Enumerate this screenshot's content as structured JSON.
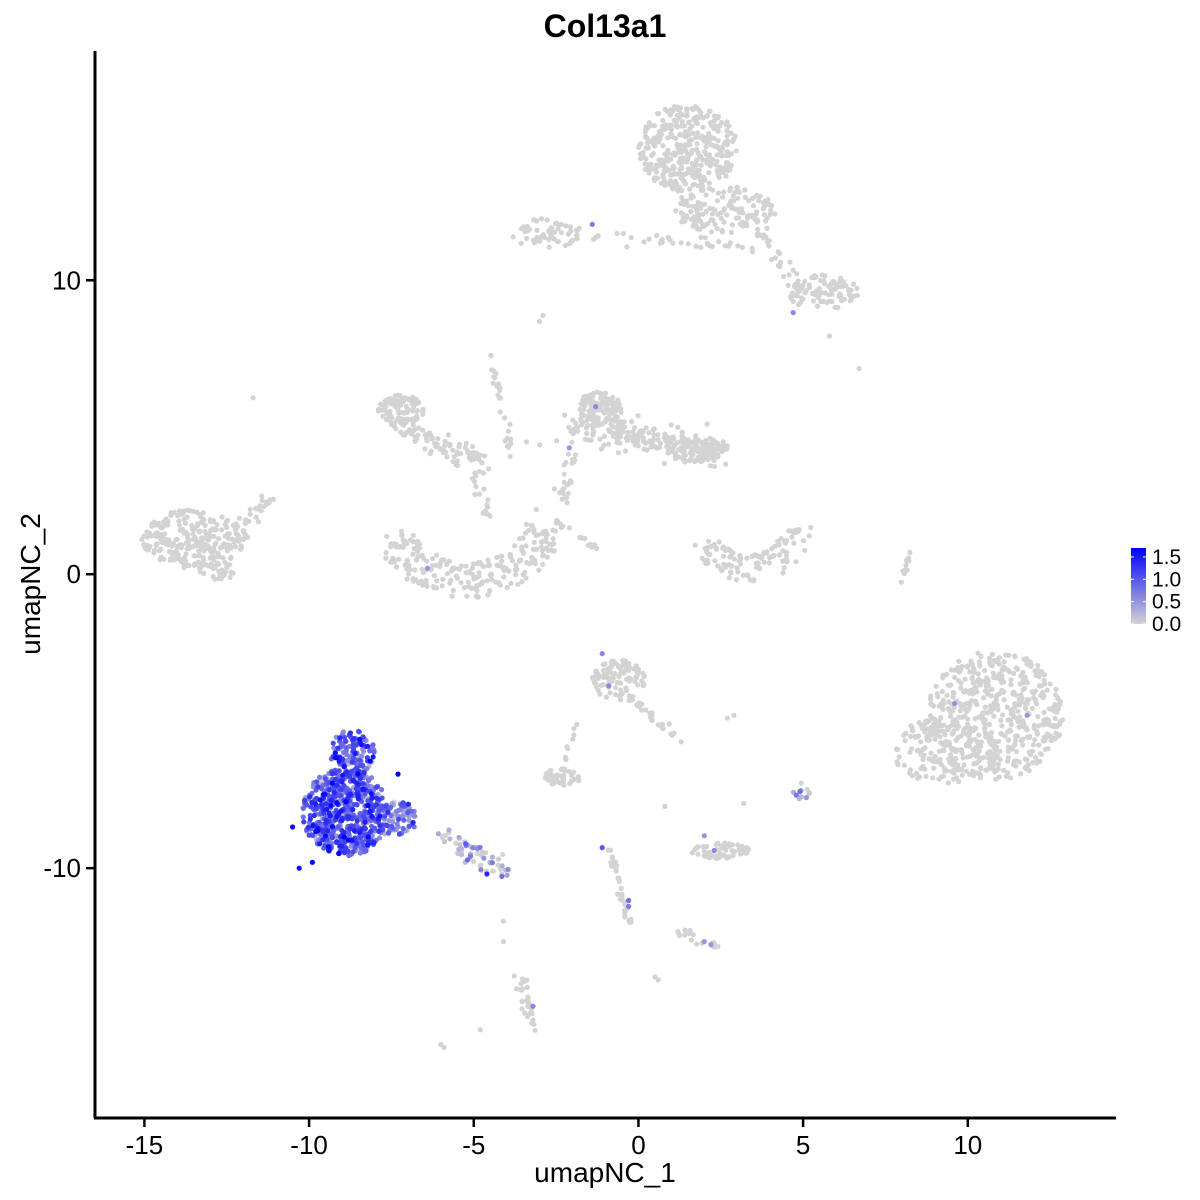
{
  "chart_data": {
    "type": "scatter",
    "title": "Col13a1",
    "xlabel": "umapNC_1",
    "ylabel": "umapNC_2",
    "xlim": [
      -16.5,
      14.5
    ],
    "ylim": [
      -18.5,
      17.8
    ],
    "x_ticks": [
      -15,
      -10,
      -5,
      0,
      5,
      10
    ],
    "x_tick_labels": [
      "-15",
      "-10",
      "-5",
      "0",
      "5",
      "10"
    ],
    "y_ticks": [
      -10,
      0,
      10
    ],
    "y_tick_labels": [
      "-10",
      "0",
      "10"
    ],
    "grid": false,
    "legend": {
      "placement": "right",
      "type": "colorbar",
      "min": 0.0,
      "max": 1.7,
      "ticks": [
        0.0,
        0.5,
        1.0,
        1.5
      ],
      "tick_labels": [
        "0.0",
        "0.5",
        "1.0",
        "1.5"
      ],
      "low_color": "#d3d3d3",
      "high_color": "#0000ff"
    },
    "clusters": [
      {
        "shape": "ellipse",
        "cx": 1.5,
        "cy": 14.5,
        "rx": 1.5,
        "ry": 1.5,
        "n": 380,
        "expr": 0
      },
      {
        "shape": "ellipse",
        "cx": 2.6,
        "cy": 12.4,
        "rx": 1.6,
        "ry": 0.8,
        "n": 140,
        "expr": 0
      },
      {
        "shape": "ellipse",
        "cx": 5.6,
        "cy": 9.6,
        "rx": 1.1,
        "ry": 0.6,
        "n": 90,
        "expr": 0
      },
      {
        "shape": "ellipse",
        "cx": -2.8,
        "cy": 11.6,
        "rx": 1.1,
        "ry": 0.5,
        "n": 60,
        "expr": 0
      },
      {
        "shape": "segment",
        "x1": -1.5,
        "y1": 11.5,
        "x2": 3.5,
        "y2": 11.2,
        "width": 0.35,
        "n": 35,
        "expr": 0
      },
      {
        "shape": "segment",
        "x1": 3.5,
        "y1": 12.0,
        "x2": 4.8,
        "y2": 9.5,
        "width": 0.35,
        "n": 30,
        "expr": 0
      },
      {
        "shape": "ellipse",
        "cx": -13.5,
        "cy": 1.2,
        "rx": 1.6,
        "ry": 1.0,
        "n": 260,
        "expr": 0
      },
      {
        "shape": "segment",
        "x1": -12.6,
        "y1": 0.8,
        "x2": -11.3,
        "y2": 2.6,
        "width": 0.3,
        "n": 30,
        "expr": 0
      },
      {
        "shape": "ellipse",
        "cx": -12.8,
        "cy": 0.1,
        "rx": 0.6,
        "ry": 0.3,
        "n": 25,
        "expr": 0
      },
      {
        "shape": "ellipse",
        "cx": -7.2,
        "cy": 5.6,
        "rx": 0.7,
        "ry": 0.5,
        "n": 90,
        "expr": 0
      },
      {
        "shape": "segment",
        "x1": -7.5,
        "y1": 5.2,
        "x2": -4.8,
        "y2": 3.9,
        "width": 0.45,
        "n": 90,
        "expr": 0
      },
      {
        "shape": "segment",
        "x1": -4.5,
        "y1": 7.5,
        "x2": -3.9,
        "y2": 4.0,
        "width": 0.15,
        "n": 25,
        "expr": 0
      },
      {
        "shape": "segment",
        "x1": -5.0,
        "y1": 3.8,
        "x2": -4.6,
        "y2": 1.8,
        "width": 0.25,
        "n": 18,
        "expr": 0
      },
      {
        "shape": "arc",
        "cx": -5.2,
        "cy": 2.2,
        "r": 2.4,
        "width": 0.6,
        "a1": 200,
        "a2": 345,
        "n": 230,
        "expr": 0
      },
      {
        "shape": "ellipse",
        "cx": -1.2,
        "cy": 5.6,
        "rx": 0.7,
        "ry": 0.6,
        "n": 110,
        "expr": 0
      },
      {
        "shape": "segment",
        "x1": -2.0,
        "y1": 5.0,
        "x2": 2.5,
        "y2": 4.2,
        "width": 0.6,
        "n": 220,
        "expr": 0
      },
      {
        "shape": "ellipse",
        "cx": 1.8,
        "cy": 4.2,
        "rx": 0.9,
        "ry": 0.4,
        "n": 70,
        "expr": 0
      },
      {
        "shape": "segment",
        "x1": -2.0,
        "y1": 4.0,
        "x2": -2.3,
        "y2": 2.5,
        "width": 0.3,
        "n": 25,
        "expr": 0
      },
      {
        "shape": "segment",
        "x1": -2.5,
        "y1": 1.8,
        "x2": -1.2,
        "y2": 0.8,
        "width": 0.1,
        "n": 16,
        "expr": 0
      },
      {
        "shape": "arc",
        "cx": 3.4,
        "cy": 1.6,
        "r": 1.4,
        "width": 0.45,
        "a1": 200,
        "a2": 360,
        "n": 110,
        "expr": 0
      },
      {
        "shape": "segment",
        "x1": 8.0,
        "y1": -0.3,
        "x2": 8.3,
        "y2": 1.0,
        "width": 0.1,
        "n": 14,
        "expr": 0
      },
      {
        "shape": "ellipse",
        "cx": 10.8,
        "cy": -4.8,
        "rx": 2.1,
        "ry": 2.2,
        "n": 520,
        "expr": 0
      },
      {
        "shape": "ellipse",
        "cx": 9.3,
        "cy": -6.0,
        "rx": 1.6,
        "ry": 1.2,
        "n": 160,
        "expr": 0
      },
      {
        "shape": "ellipse",
        "cx": -0.6,
        "cy": -3.6,
        "rx": 0.8,
        "ry": 0.7,
        "n": 95,
        "expr": 0
      },
      {
        "shape": "segment",
        "x1": -0.3,
        "y1": -4.2,
        "x2": 1.2,
        "y2": -5.5,
        "width": 0.25,
        "n": 25,
        "expr": 0
      },
      {
        "shape": "ellipse",
        "cx": -2.3,
        "cy": -6.9,
        "rx": 0.6,
        "ry": 0.3,
        "n": 45,
        "expr": 0
      },
      {
        "shape": "segment",
        "x1": -2.3,
        "y1": -6.6,
        "x2": -1.9,
        "y2": -5.0,
        "width": 0.1,
        "n": 10,
        "expr": 0
      },
      {
        "shape": "ellipse",
        "cx": 2.5,
        "cy": -9.4,
        "rx": 0.9,
        "ry": 0.3,
        "n": 60,
        "expr": 0
      },
      {
        "shape": "segment",
        "x1": -0.9,
        "y1": -9.2,
        "x2": -0.3,
        "y2": -11.8,
        "width": 0.15,
        "n": 35,
        "expr": 0
      },
      {
        "shape": "segment",
        "x1": 1.2,
        "y1": -12.2,
        "x2": 2.4,
        "y2": -12.6,
        "width": 0.2,
        "n": 18,
        "expr": 0
      },
      {
        "shape": "segment",
        "x1": -3.6,
        "y1": -13.7,
        "x2": -3.2,
        "y2": -15.4,
        "width": 0.2,
        "n": 30,
        "expr": 0
      },
      {
        "shape": "segment",
        "x1": -6.0,
        "y1": -8.8,
        "x2": -4.0,
        "y2": -10.2,
        "width": 0.4,
        "n": 60,
        "expr": 0.15
      },
      {
        "shape": "ellipse",
        "cx": 5.0,
        "cy": -7.4,
        "rx": 0.3,
        "ry": 0.3,
        "n": 10,
        "expr": 0.1
      },
      {
        "shape": "ellipse",
        "cx": -8.9,
        "cy": -8.1,
        "rx": 1.3,
        "ry": 1.5,
        "n": 620,
        "expr": 0.9
      },
      {
        "shape": "ellipse",
        "cx": -8.7,
        "cy": -6.1,
        "rx": 0.7,
        "ry": 0.8,
        "n": 120,
        "expr": 0.9
      },
      {
        "shape": "ellipse",
        "cx": -7.4,
        "cy": -8.3,
        "rx": 0.7,
        "ry": 0.6,
        "n": 80,
        "expr": 0.7
      }
    ],
    "singles": [
      {
        "x": -11.7,
        "y": 6.0,
        "v": 0
      },
      {
        "x": -4.3,
        "y": 6.4,
        "v": 0
      },
      {
        "x": -3.9,
        "y": 5.1,
        "v": 0
      },
      {
        "x": -3.4,
        "y": 4.5,
        "v": 0
      },
      {
        "x": -3.0,
        "y": 4.4,
        "v": 0
      },
      {
        "x": -3.1,
        "y": 2.2,
        "v": 0
      },
      {
        "x": -2.6,
        "y": 1.5,
        "v": 0
      },
      {
        "x": 6.7,
        "y": 7.0,
        "v": 0
      },
      {
        "x": 5.8,
        "y": 8.1,
        "v": 0
      },
      {
        "x": -2.9,
        "y": 8.8,
        "v": 0
      },
      {
        "x": -3.0,
        "y": 8.6,
        "v": 0
      },
      {
        "x": -4.1,
        "y": -11.8,
        "v": 0
      },
      {
        "x": -4.1,
        "y": -12.5,
        "v": 0
      },
      {
        "x": -4.8,
        "y": -15.5,
        "v": 0
      },
      {
        "x": -6.0,
        "y": -16.0,
        "v": 0
      },
      {
        "x": -5.9,
        "y": -16.1,
        "v": 0
      },
      {
        "x": 0.5,
        "y": -13.7,
        "v": 0
      },
      {
        "x": 0.6,
        "y": -13.8,
        "v": 0
      },
      {
        "x": 2.7,
        "y": -4.9,
        "v": 0
      },
      {
        "x": 2.9,
        "y": -4.8,
        "v": 0
      },
      {
        "x": 3.2,
        "y": -7.8,
        "v": 0
      },
      {
        "x": 1.3,
        "y": -5.7,
        "v": 0
      },
      {
        "x": 0.8,
        "y": -7.9,
        "v": 0
      },
      {
        "x": -1.4,
        "y": 11.9,
        "v": 0.7
      },
      {
        "x": 4.7,
        "y": 8.9,
        "v": 0.6
      },
      {
        "x": -1.3,
        "y": 5.7,
        "v": 0.6
      },
      {
        "x": -2.1,
        "y": 4.3,
        "v": 0.5
      },
      {
        "x": -6.4,
        "y": 0.2,
        "v": 0.5
      },
      {
        "x": -1.1,
        "y": -2.7,
        "v": 0.6
      },
      {
        "x": -0.9,
        "y": -3.8,
        "v": 0.6
      },
      {
        "x": 9.6,
        "y": -4.4,
        "v": 0.5
      },
      {
        "x": 11.8,
        "y": -4.8,
        "v": 0.5
      },
      {
        "x": -1.1,
        "y": -9.3,
        "v": 1.0
      },
      {
        "x": -0.3,
        "y": -11.1,
        "v": 0.8
      },
      {
        "x": -0.3,
        "y": -11.3,
        "v": 0.7
      },
      {
        "x": 2.0,
        "y": -8.9,
        "v": 0.5
      },
      {
        "x": 2.3,
        "y": -9.4,
        "v": 0.6
      },
      {
        "x": 2.0,
        "y": -12.5,
        "v": 0.5
      },
      {
        "x": 2.2,
        "y": -12.6,
        "v": 0.5
      },
      {
        "x": -3.2,
        "y": -14.7,
        "v": 0.6
      },
      {
        "x": 5.1,
        "y": -7.6,
        "v": 0.5
      },
      {
        "x": -4.6,
        "y": -10.2,
        "v": 1.4
      },
      {
        "x": -10.3,
        "y": -10.0,
        "v": 1.6
      },
      {
        "x": -9.9,
        "y": -9.8,
        "v": 1.7
      },
      {
        "x": -7.3,
        "y": -6.8,
        "v": 1.7
      },
      {
        "x": -10.5,
        "y": -8.6,
        "v": 1.6
      },
      {
        "x": -9.5,
        "y": -8.9,
        "v": 1.6
      },
      {
        "x": -9.1,
        "y": -9.5,
        "v": 1.7
      },
      {
        "x": -8.6,
        "y": -6.1,
        "v": 1.5
      }
    ]
  }
}
